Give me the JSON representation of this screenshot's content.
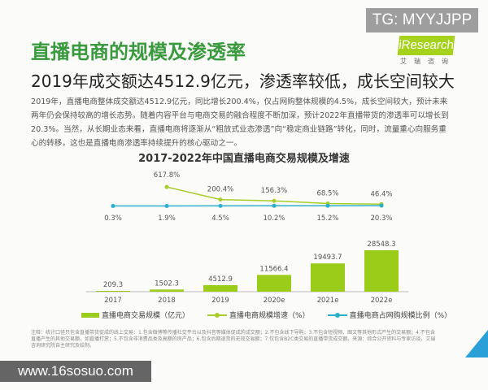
{
  "watermark_top": "TG: MYYJJPP",
  "logo": {
    "text": "iResearch",
    "sub": "艾瑞咨询"
  },
  "title": "直播电商的规模及渗透率",
  "subtitle": "2019年成交额达4512.9亿元，渗透率较低，成长空间较大",
  "body": "2019年，直播电商整体成交额达4512.9亿元，同比增长200.4%，仅占网购整体规模的4.5%，成长空间较大，预计未来两年仍会保持较高的增长态势。随着内容平台与电商交易的融合程度不断加深，预计2022年直播带货的渗透率可以增长到20.3%。当然，从长期业态来看，直播电商将逐渐从“粗放式业态渗透”向“稳定商业链路”转化，同时，流量重心向服务重心的转移，这也是直播电商渗透率持续提升的核心驱动之一。",
  "footnote": "注释：统计口径只包含直播带货促成的线上交易：1.包含微博等传播社交平台以及抖音等媒体促成的成交额；2.不包含线下导购；3.不包含短视频、图文等其他形式产生的交易额；4.不包含直播产生的其他交易额，如直播打赏；5.不包含非消费品类及高额的房产品；6.包含后期退货的无效交易额；7.仅包含B2C类交易的直播带货成交额。来源：综合公开资料与专家访谈，艾瑞咨询研究院自主研究及绘制。",
  "watermark_bottom": "www.16sosuo.com",
  "colors": {
    "bar": "#9ccc1a",
    "growth_line": "#a8cc2a",
    "share_line": "#2ab0cc",
    "title": "#3a9a3e"
  },
  "chart_data": {
    "type": "bar",
    "title": "2017-2022年中国直播电商交易规模及增速",
    "categories": [
      "2017",
      "2018",
      "2019",
      "2020e",
      "2021e",
      "2022e"
    ],
    "legend_placement": "bottom",
    "grid": false,
    "series": [
      {
        "name": "直播电商交易规模（亿元）",
        "type": "bar",
        "values": [
          209.3,
          1502.3,
          4512.9,
          11566.4,
          19493.7,
          28548.3
        ],
        "labels": [
          "209.3",
          "1502.3",
          "4512.9",
          "11566.4",
          "19493.7",
          "28548.3"
        ]
      },
      {
        "name": "直播电商规模增速（%）",
        "type": "line",
        "values": [
          null,
          617.8,
          200.4,
          156.3,
          68.5,
          46.4
        ],
        "labels": [
          "",
          "617.8%",
          "200.4%",
          "156.3%",
          "68.5%",
          "46.4%"
        ]
      },
      {
        "name": "直播电商占网购规模比例（%）",
        "type": "line",
        "values": [
          0.3,
          1.9,
          4.5,
          10.2,
          15.2,
          20.3
        ],
        "labels": [
          "0.3%",
          "1.9%",
          "4.5%",
          "10.2%",
          "15.2%",
          "20.3%"
        ]
      }
    ]
  }
}
